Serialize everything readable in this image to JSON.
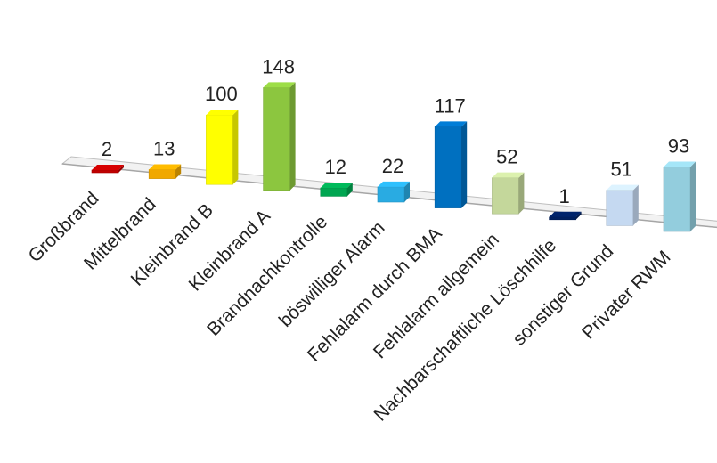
{
  "chart_data": {
    "type": "bar",
    "title": "",
    "xlabel": "",
    "ylabel": "",
    "categories": [
      "Großbrand",
      "Mittelbrand",
      "Kleinbrand B",
      "Kleinbrand A",
      "Brandnachkontrolle",
      "böswilliger Alarm",
      "Fehlalarm durch BMA",
      "Fehlalarm allgemein",
      "Nachbarschaftliche Löschhilfe",
      "sonstiger Grund",
      "Privater RWM"
    ],
    "values": [
      2,
      13,
      100,
      148,
      12,
      22,
      117,
      52,
      1,
      51,
      93
    ],
    "colors": [
      "#c00000",
      "#f0a800",
      "#ffff00",
      "#8cc63f",
      "#00a651",
      "#29abe2",
      "#0070c0",
      "#c4d79b",
      "#002060",
      "#c5d9f1",
      "#93cddd"
    ],
    "three_d": true,
    "data_labels": true,
    "legend": "none",
    "grid": false
  }
}
